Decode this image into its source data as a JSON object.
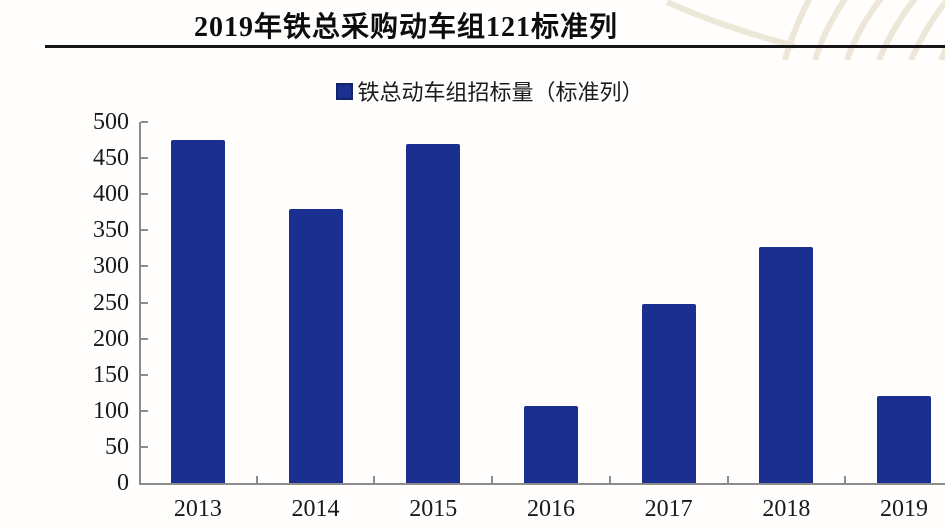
{
  "header": {
    "title": "2019年铁总采购动车组121标准列"
  },
  "legend": {
    "label": "铁总动车组招标量（标准列）",
    "swatch_color": "#1b2f90"
  },
  "chart_data": {
    "type": "bar",
    "title": "2019年铁总采购动车组121标准列",
    "legend": [
      "铁总动车组招标量（标准列）"
    ],
    "legend_position": "top-center",
    "categories": [
      "2013",
      "2014",
      "2015",
      "2016",
      "2017",
      "2018",
      "2019"
    ],
    "values": [
      475,
      380,
      470,
      107,
      248,
      327,
      121
    ],
    "xlabel": "",
    "ylabel": "",
    "ylim": [
      0,
      500
    ],
    "yticks": [
      0,
      50,
      100,
      150,
      200,
      250,
      300,
      350,
      400,
      450,
      500
    ],
    "grid": false,
    "bar_color": "#1b2f90",
    "axis_color": "#8c8c8c"
  },
  "colors": {
    "bar": "#1b2f90",
    "title_rule": "#161616",
    "background": "#fffefc",
    "watermark": "#e8e3cf"
  }
}
